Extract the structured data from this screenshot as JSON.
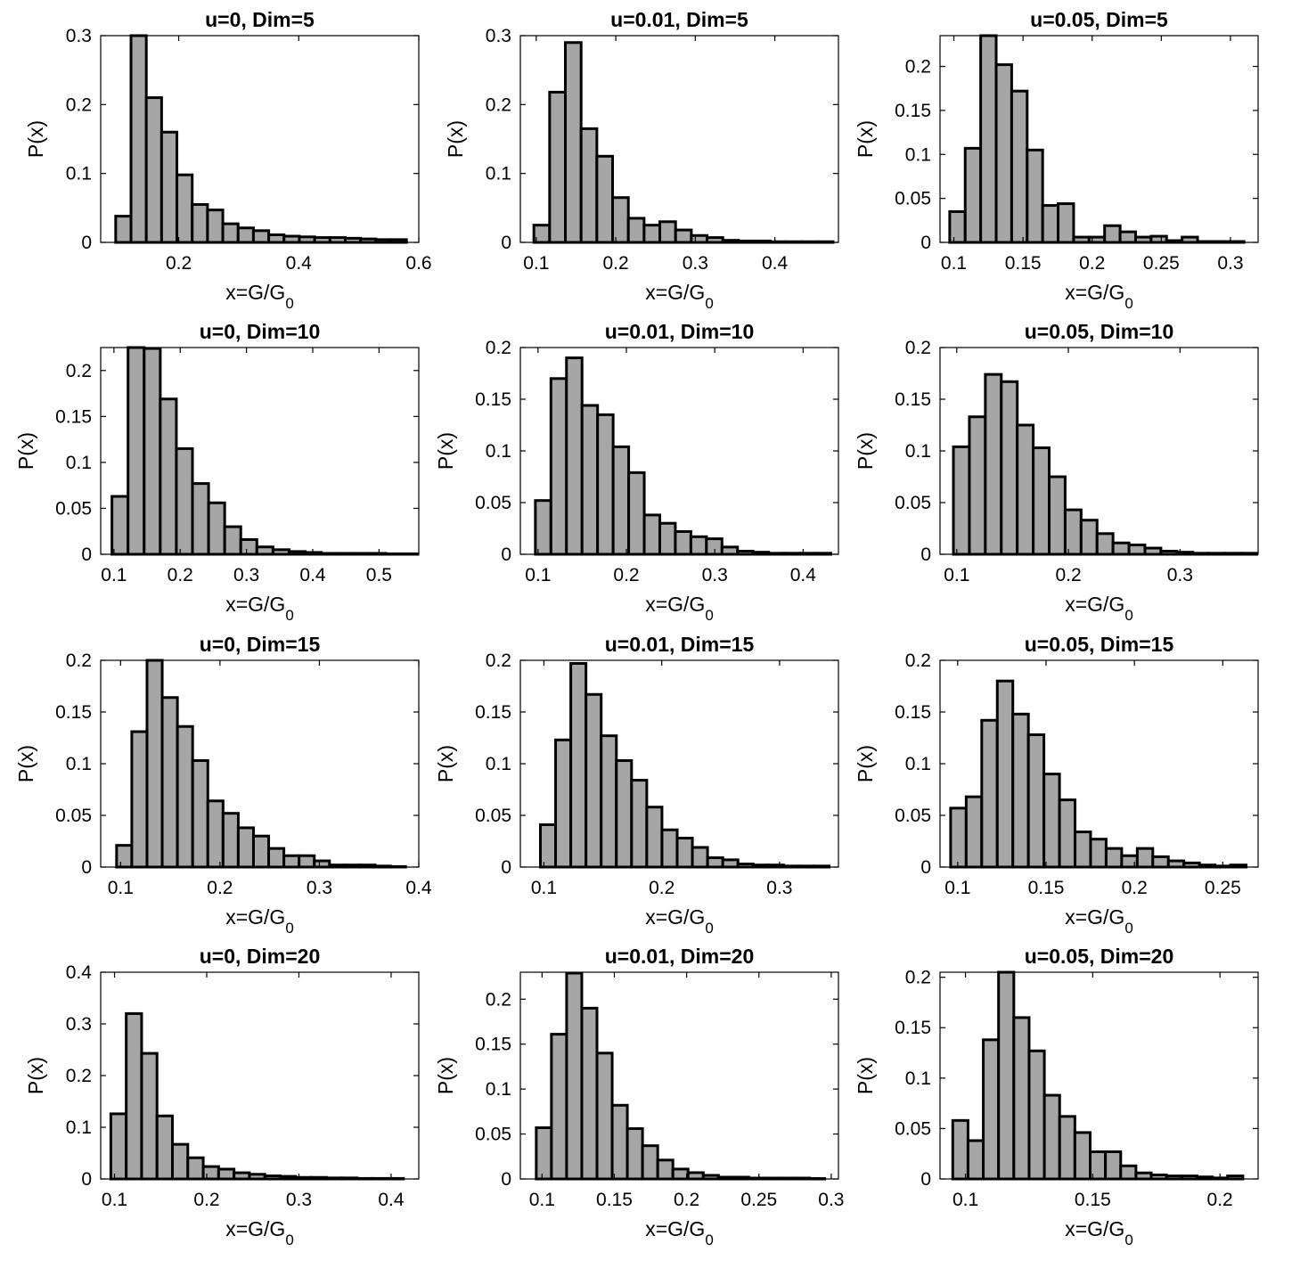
{
  "chart_data": [
    {
      "type": "bar",
      "title": "u=0, Dim=5",
      "xlabel": "x=G/G",
      "xlabel_sub": "0",
      "ylabel": "P(x)",
      "xlim": [
        0.07,
        0.6
      ],
      "ylim": [
        0,
        0.3
      ],
      "xticks": [
        "0.2",
        "0.4",
        "0.6"
      ],
      "yticks": [
        "0",
        "0.1",
        "0.2",
        "0.3"
      ],
      "bin_start": 0.095,
      "bin_width": 0.0255,
      "values": [
        0.038,
        0.302,
        0.21,
        0.16,
        0.098,
        0.055,
        0.047,
        0.027,
        0.021,
        0.017,
        0.011,
        0.009,
        0.008,
        0.007,
        0.007,
        0.006,
        0.005,
        0.004,
        0.004
      ]
    },
    {
      "type": "bar",
      "title": "u=0.01, Dim=5",
      "xlabel": "x=G/G",
      "xlabel_sub": "0",
      "ylabel": "P(x)",
      "xlim": [
        0.08,
        0.48
      ],
      "ylim": [
        0,
        0.3
      ],
      "xticks": [
        "0.1",
        "0.2",
        "0.3",
        "0.4"
      ],
      "yticks": [
        "0",
        "0.1",
        "0.2",
        "0.3"
      ],
      "bin_start": 0.097,
      "bin_width": 0.0198,
      "values": [
        0.025,
        0.218,
        0.29,
        0.165,
        0.125,
        0.065,
        0.035,
        0.025,
        0.03,
        0.018,
        0.01,
        0.007,
        0.003,
        0.002,
        0.002,
        0.001,
        0.001,
        0.001,
        0.001
      ]
    },
    {
      "type": "bar",
      "title": "u=0.05, Dim=5",
      "xlabel": "x=G/G",
      "xlabel_sub": "0",
      "ylabel": "P(x)",
      "xlim": [
        0.09,
        0.32
      ],
      "ylim": [
        0,
        0.235
      ],
      "xticks": [
        "0.1",
        "0.15",
        "0.2",
        "0.25",
        "0.3"
      ],
      "yticks": [
        "0",
        "0.05",
        "0.1",
        "0.15",
        "0.2"
      ],
      "bin_start": 0.097,
      "bin_width": 0.0112,
      "values": [
        0.035,
        0.107,
        0.235,
        0.202,
        0.172,
        0.105,
        0.042,
        0.044,
        0.006,
        0.006,
        0.019,
        0.012,
        0.006,
        0.007,
        0.002,
        0.006,
        0.001,
        0.001,
        0.001
      ]
    },
    {
      "type": "bar",
      "title": "u=0, Dim=10",
      "xlabel": "x=G/G",
      "xlabel_sub": "0",
      "ylabel": "P(x)",
      "xlim": [
        0.08,
        0.56
      ],
      "ylim": [
        0,
        0.225
      ],
      "xticks": [
        "0.1",
        "0.2",
        "0.3",
        "0.4",
        "0.5"
      ],
      "yticks": [
        "0",
        "0.05",
        "0.1",
        "0.15",
        "0.2"
      ],
      "bin_start": 0.097,
      "bin_width": 0.0243,
      "values": [
        0.063,
        0.225,
        0.224,
        0.169,
        0.115,
        0.077,
        0.056,
        0.03,
        0.016,
        0.008,
        0.005,
        0.003,
        0.002,
        0.001,
        0.001,
        0.001,
        0.001,
        0.0005,
        0.0005
      ]
    },
    {
      "type": "bar",
      "title": "u=0.01, Dim=10",
      "xlabel": "x=G/G",
      "xlabel_sub": "0",
      "ylabel": "P(x)",
      "xlim": [
        0.08,
        0.44
      ],
      "ylim": [
        0,
        0.2
      ],
      "xticks": [
        "0.1",
        "0.2",
        "0.3",
        "0.4"
      ],
      "yticks": [
        "0",
        "0.05",
        "0.1",
        "0.15",
        "0.2"
      ],
      "bin_start": 0.097,
      "bin_width": 0.0176,
      "values": [
        0.052,
        0.17,
        0.19,
        0.144,
        0.135,
        0.104,
        0.079,
        0.038,
        0.03,
        0.022,
        0.017,
        0.015,
        0.007,
        0.003,
        0.002,
        0.001,
        0.001,
        0.001,
        0.001
      ]
    },
    {
      "type": "bar",
      "title": "u=0.05, Dim=10",
      "xlabel": "x=G/G",
      "xlabel_sub": "0",
      "ylabel": "P(x)",
      "xlim": [
        0.085,
        0.37
      ],
      "ylim": [
        0,
        0.2
      ],
      "xticks": [
        "0.1",
        "0.2",
        "0.3"
      ],
      "yticks": [
        "0",
        "0.05",
        "0.1",
        "0.15",
        "0.2"
      ],
      "bin_start": 0.097,
      "bin_width": 0.0143,
      "values": [
        0.104,
        0.133,
        0.174,
        0.167,
        0.125,
        0.103,
        0.075,
        0.043,
        0.033,
        0.02,
        0.011,
        0.009,
        0.006,
        0.003,
        0.002,
        0.001,
        0.001,
        0.001,
        0.001
      ]
    },
    {
      "type": "bar",
      "title": "u=0, Dim=15",
      "xlabel": "x=G/G",
      "xlabel_sub": "0",
      "ylabel": "P(x)",
      "xlim": [
        0.08,
        0.4
      ],
      "ylim": [
        0,
        0.2
      ],
      "xticks": [
        "0.1",
        "0.2",
        "0.3",
        "0.4"
      ],
      "yticks": [
        "0",
        "0.05",
        "0.1",
        "0.15",
        "0.2"
      ],
      "bin_start": 0.096,
      "bin_width": 0.0153,
      "values": [
        0.021,
        0.131,
        0.202,
        0.164,
        0.136,
        0.103,
        0.064,
        0.052,
        0.038,
        0.03,
        0.018,
        0.011,
        0.011,
        0.006,
        0.002,
        0.002,
        0.002,
        0.001,
        0.0005
      ]
    },
    {
      "type": "bar",
      "title": "u=0.01, Dim=15",
      "xlabel": "x=G/G",
      "xlabel_sub": "0",
      "ylabel": "P(x)",
      "xlim": [
        0.08,
        0.35
      ],
      "ylim": [
        0,
        0.2
      ],
      "xticks": [
        "0.1",
        "0.2",
        "0.3"
      ],
      "yticks": [
        "0",
        "0.05",
        "0.1",
        "0.15",
        "0.2"
      ],
      "bin_start": 0.097,
      "bin_width": 0.0129,
      "values": [
        0.041,
        0.123,
        0.197,
        0.167,
        0.127,
        0.103,
        0.084,
        0.058,
        0.036,
        0.028,
        0.019,
        0.009,
        0.007,
        0.003,
        0.002,
        0.002,
        0.001,
        0.001,
        0.001
      ]
    },
    {
      "type": "bar",
      "title": "u=0.05, Dim=15",
      "xlabel": "x=G/G",
      "xlabel_sub": "0",
      "ylabel": "P(x)",
      "xlim": [
        0.09,
        0.27
      ],
      "ylim": [
        0,
        0.2
      ],
      "xticks": [
        "0.1",
        "0.15",
        "0.2",
        "0.25"
      ],
      "yticks": [
        "0",
        "0.05",
        "0.1",
        "0.15",
        "0.2"
      ],
      "bin_start": 0.096,
      "bin_width": 0.0088,
      "values": [
        0.057,
        0.068,
        0.142,
        0.18,
        0.148,
        0.128,
        0.09,
        0.065,
        0.034,
        0.027,
        0.018,
        0.011,
        0.018,
        0.01,
        0.006,
        0.004,
        0.002,
        0.001,
        0.002
      ]
    },
    {
      "type": "bar",
      "title": "u=0, Dim=20",
      "xlabel": "x=G/G",
      "xlabel_sub": "0",
      "ylabel": "P(x)",
      "xlim": [
        0.085,
        0.43
      ],
      "ylim": [
        0,
        0.4
      ],
      "xticks": [
        "0.1",
        "0.2",
        "0.3",
        "0.4"
      ],
      "yticks": [
        "0",
        "0.1",
        "0.2",
        "0.3",
        "0.4"
      ],
      "bin_start": 0.096,
      "bin_width": 0.0167,
      "values": [
        0.126,
        0.32,
        0.243,
        0.122,
        0.067,
        0.041,
        0.024,
        0.019,
        0.012,
        0.009,
        0.006,
        0.005,
        0.003,
        0.003,
        0.002,
        0.002,
        0.001,
        0.001,
        0.001
      ]
    },
    {
      "type": "bar",
      "title": "u=0.01, Dim=20",
      "xlabel": "x=G/G",
      "xlabel_sub": "0",
      "ylabel": "P(x)",
      "xlim": [
        0.085,
        0.305
      ],
      "ylim": [
        0,
        0.23
      ],
      "xticks": [
        "0.1",
        "0.15",
        "0.2",
        "0.25",
        "0.3"
      ],
      "yticks": [
        "0",
        "0.05",
        "0.1",
        "0.15",
        "0.2"
      ],
      "bin_start": 0.096,
      "bin_width": 0.0105,
      "values": [
        0.057,
        0.161,
        0.229,
        0.19,
        0.14,
        0.082,
        0.056,
        0.037,
        0.021,
        0.011,
        0.007,
        0.004,
        0.002,
        0.002,
        0.001,
        0.001,
        0.001,
        0.001,
        0.0005
      ]
    },
    {
      "type": "bar",
      "title": "u=0.05, Dim=20",
      "xlabel": "x=G/G",
      "xlabel_sub": "0",
      "ylabel": "P(x)",
      "xlim": [
        0.09,
        0.215
      ],
      "ylim": [
        0,
        0.205
      ],
      "xticks": [
        "0.1",
        "0.15",
        "0.2"
      ],
      "yticks": [
        "0",
        "0.05",
        "0.1",
        "0.15",
        "0.2"
      ],
      "bin_start": 0.095,
      "bin_width": 0.006,
      "values": [
        0.058,
        0.038,
        0.138,
        0.205,
        0.16,
        0.127,
        0.083,
        0.062,
        0.046,
        0.027,
        0.027,
        0.013,
        0.006,
        0.004,
        0.003,
        0.003,
        0.002,
        0.001,
        0.003
      ]
    }
  ]
}
